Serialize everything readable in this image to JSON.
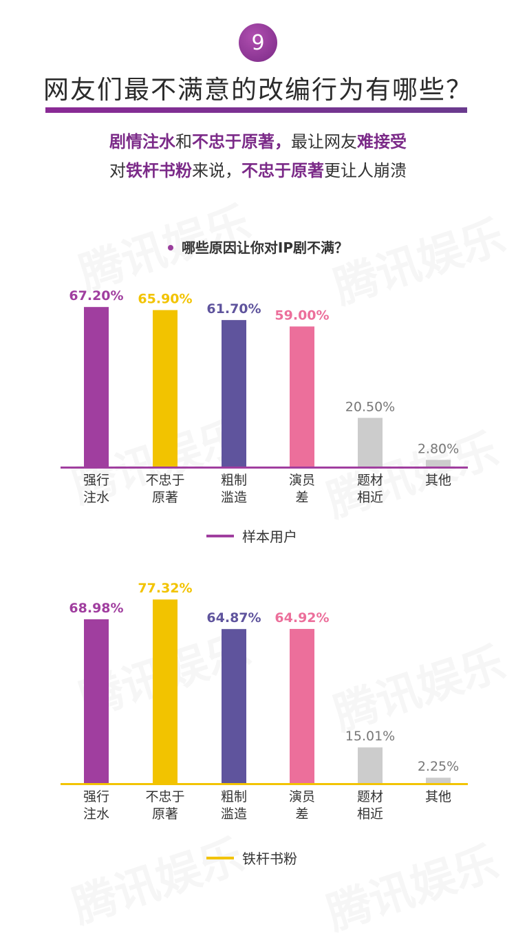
{
  "badge_number": "9",
  "title": "网友们最不满意的改编行为有哪些？",
  "subtitle_line1": [
    {
      "text": "剧情注水",
      "hl": true
    },
    {
      "text": "和",
      "hl": false
    },
    {
      "text": "不忠于原著，",
      "hl": true
    },
    {
      "text": "最让网友",
      "hl": false
    },
    {
      "text": "难接受",
      "hl": true
    }
  ],
  "subtitle_line2": [
    {
      "text": "对",
      "hl": false
    },
    {
      "text": "铁杆书粉",
      "hl": true
    },
    {
      "text": "来说，",
      "hl": false
    },
    {
      "text": "不忠于原著",
      "hl": true
    },
    {
      "text": "更让人崩溃",
      "hl": false
    }
  ],
  "question": "哪些原因让你对IP剧不满？",
  "watermark_text": "腾讯娱乐",
  "colors": {
    "accent": "#7b2a88",
    "purple": "#a03e9f",
    "yellow": "#f2c300",
    "indigo": "#5f549d",
    "pink": "#ec6f9b",
    "gray": "#cccccc"
  },
  "chart_data": [
    {
      "type": "bar",
      "categories": [
        "强行\n注水",
        "不忠于\n原著",
        "粗制\n滥造",
        "演员\n差",
        "题材\n相近",
        "其他"
      ],
      "values": [
        67.2,
        65.9,
        61.7,
        59.0,
        20.5,
        2.8
      ],
      "value_labels": [
        "67.20%",
        "65.90%",
        "61.70%",
        "59.00%",
        "20.50%",
        "2.80%"
      ],
      "bar_colors": [
        "#a03e9f",
        "#f2c300",
        "#5f549d",
        "#ec6f9b",
        "#cccccc",
        "#cccccc"
      ],
      "baseline_color": "#a03e9f",
      "legend": "样本用户",
      "ylim": [
        0,
        80
      ],
      "grid": false
    },
    {
      "type": "bar",
      "categories": [
        "强行\n注水",
        "不忠于\n原著",
        "粗制\n滥造",
        "演员\n差",
        "题材\n相近",
        "其他"
      ],
      "values": [
        68.98,
        77.32,
        64.87,
        64.92,
        15.01,
        2.25
      ],
      "value_labels": [
        "68.98%",
        "77.32%",
        "64.87%",
        "64.92%",
        "15.01%",
        "2.25%"
      ],
      "bar_colors": [
        "#a03e9f",
        "#f2c300",
        "#5f549d",
        "#ec6f9b",
        "#cccccc",
        "#cccccc"
      ],
      "baseline_color": "#f2c300",
      "legend": "铁杆书粉",
      "ylim": [
        0,
        80
      ],
      "grid": false
    }
  ]
}
